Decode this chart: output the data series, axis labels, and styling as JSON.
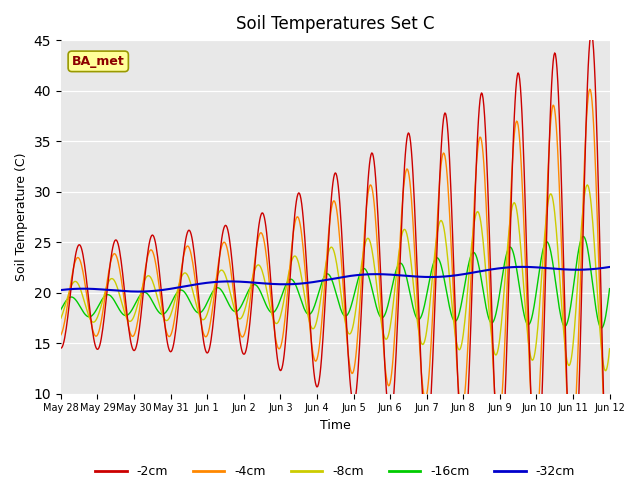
{
  "title": "Soil Temperatures Set C",
  "xlabel": "Time",
  "ylabel": "Soil Temperature (C)",
  "ylim": [
    10,
    45
  ],
  "yticks": [
    10,
    15,
    20,
    25,
    30,
    35,
    40,
    45
  ],
  "annotation": "BA_met",
  "xtick_labels": [
    "May 28",
    "May 29",
    "May 30",
    "May 31",
    "Jun 1",
    "Jun 2",
    "Jun 3",
    "Jun 4",
    "Jun 5",
    "Jun 6",
    "Jun 7",
    "Jun 8",
    "Jun 9",
    "Jun 10",
    "Jun 11",
    "Jun 12"
  ],
  "line_colors": [
    "#cc0000",
    "#ff8800",
    "#cccc00",
    "#00cc00",
    "#0000cc"
  ],
  "legend_labels": [
    "-2cm",
    "-4cm",
    "-8cm",
    "-16cm",
    "-32cm"
  ]
}
